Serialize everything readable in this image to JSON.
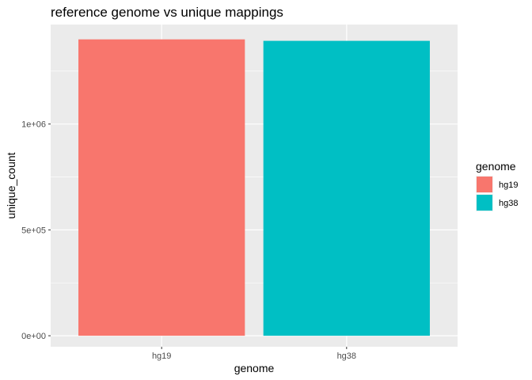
{
  "chart_data": {
    "type": "bar",
    "title": "reference genome vs unique mappings",
    "xlabel": "genome",
    "ylabel": "unique_count",
    "categories": [
      "hg19",
      "hg38"
    ],
    "values": [
      1400000,
      1393000
    ],
    "colors": [
      "#F8766D",
      "#00BFC4"
    ],
    "ylim": [
      -52000,
      1470000
    ],
    "yticks": [
      0,
      500000,
      1000000
    ],
    "ytick_labels": [
      "0e+00",
      "5e+05",
      "1e+06"
    ],
    "grid": true,
    "background": "#EBEBEB",
    "legend": {
      "title": "genome",
      "position": "right",
      "entries": [
        "hg19",
        "hg38"
      ]
    }
  }
}
